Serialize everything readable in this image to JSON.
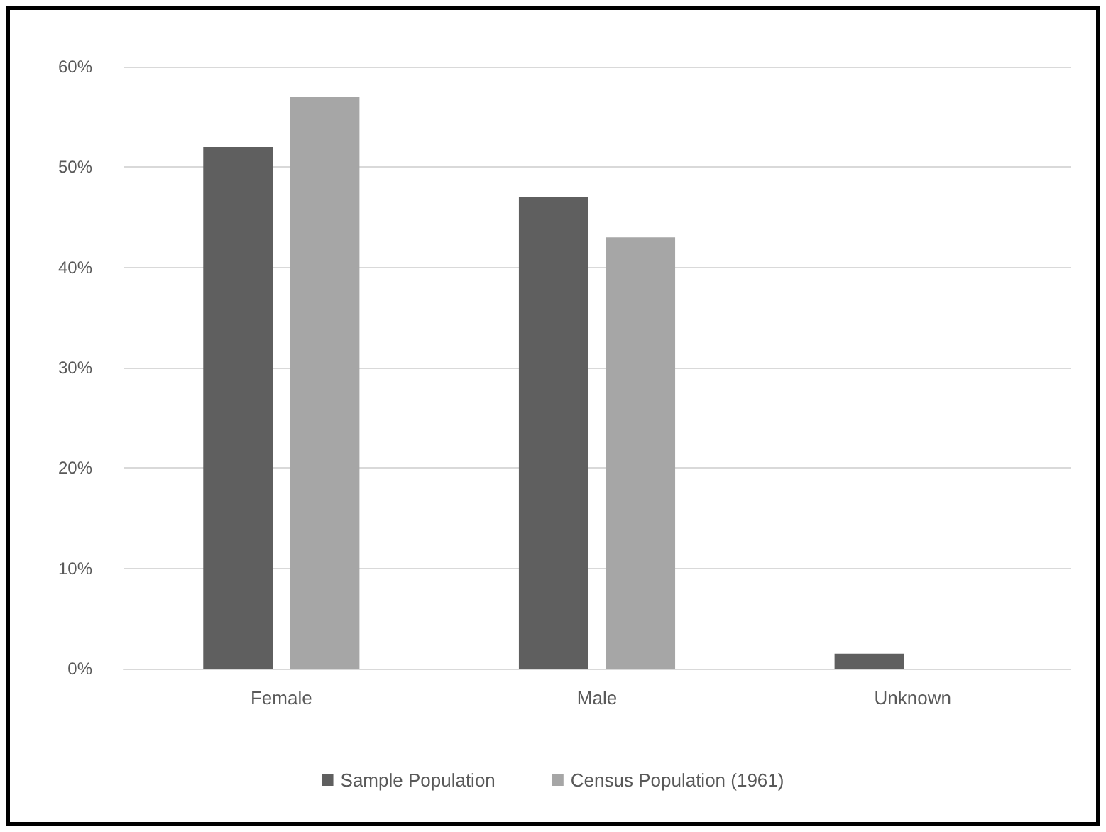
{
  "chart_data": {
    "type": "bar",
    "categories": [
      "Female",
      "Male",
      "Unknown"
    ],
    "series": [
      {
        "name": "Sample Population",
        "color": "#5f5f5f",
        "values": [
          52,
          47,
          1.5
        ]
      },
      {
        "name": "Census Population (1961)",
        "color": "#a6a6a6",
        "values": [
          57,
          43,
          null
        ]
      }
    ],
    "ylim": [
      0,
      60
    ],
    "yticks": [
      {
        "value": 0,
        "label": "0%"
      },
      {
        "value": 10,
        "label": "10%"
      },
      {
        "value": 20,
        "label": "20%"
      },
      {
        "value": 30,
        "label": "30%"
      },
      {
        "value": 40,
        "label": "40%"
      },
      {
        "value": 50,
        "label": "50%"
      },
      {
        "value": 60,
        "label": "60%"
      }
    ],
    "grid": "y",
    "legend": "bottom"
  }
}
